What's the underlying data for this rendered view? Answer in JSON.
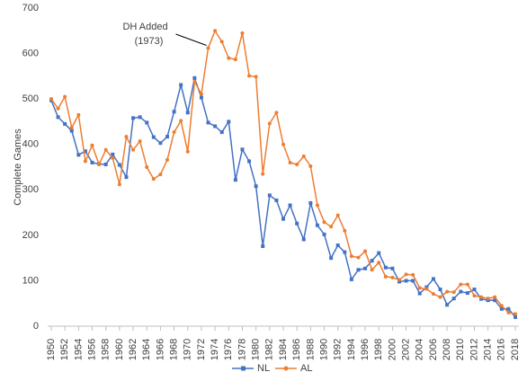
{
  "chart_data": {
    "type": "line",
    "y_label": "Complete Games",
    "x": [
      1950,
      1951,
      1952,
      1953,
      1954,
      1955,
      1956,
      1957,
      1958,
      1959,
      1960,
      1961,
      1962,
      1963,
      1964,
      1965,
      1966,
      1967,
      1968,
      1969,
      1970,
      1971,
      1972,
      1973,
      1974,
      1975,
      1976,
      1977,
      1978,
      1979,
      1980,
      1981,
      1982,
      1983,
      1984,
      1985,
      1986,
      1987,
      1988,
      1989,
      1990,
      1991,
      1992,
      1993,
      1994,
      1995,
      1996,
      1997,
      1998,
      1999,
      2000,
      2001,
      2002,
      2003,
      2004,
      2005,
      2006,
      2007,
      2008,
      2009,
      2010,
      2011,
      2012,
      2013,
      2014,
      2015,
      2016,
      2017,
      2018
    ],
    "series": [
      {
        "name": "NL",
        "color": "#4472c4",
        "marker": "square",
        "values": [
          497,
          460,
          445,
          430,
          377,
          385,
          360,
          357,
          356,
          378,
          355,
          328,
          458,
          460,
          448,
          416,
          403,
          417,
          472,
          531,
          470,
          546,
          503,
          448,
          440,
          427,
          450,
          322,
          389,
          363,
          308,
          176,
          288,
          277,
          236,
          266,
          226,
          191,
          271,
          222,
          202,
          150,
          178,
          163,
          103,
          124,
          127,
          144,
          161,
          129,
          127,
          98,
          100,
          100,
          72,
          86,
          104,
          81,
          47,
          61,
          76,
          73,
          81,
          60,
          57,
          57,
          38,
          38,
          20
        ]
      },
      {
        "name": "AL",
        "color": "#ed7d31",
        "marker": "circle",
        "values": [
          500,
          479,
          505,
          437,
          465,
          363,
          398,
          356,
          388,
          370,
          312,
          417,
          388,
          407,
          350,
          324,
          334,
          366,
          427,
          452,
          384,
          538,
          511,
          612,
          650,
          626,
          590,
          587,
          645,
          551,
          549,
          335,
          446,
          470,
          400,
          360,
          356,
          374,
          352,
          266,
          229,
          219,
          244,
          210,
          154,
          151,
          165,
          124,
          140,
          109,
          107,
          102,
          114,
          113,
          84,
          82,
          71,
          64,
          76,
          75,
          92,
          92,
          67,
          64,
          61,
          64,
          45,
          30,
          27
        ]
      }
    ],
    "annotation": {
      "text": [
        "DH Added",
        "(1973)"
      ],
      "x": 1973
    },
    "xlim": [
      1950,
      2018
    ],
    "xticks": [
      1950,
      1952,
      1954,
      1956,
      1958,
      1960,
      1962,
      1964,
      1966,
      1968,
      1970,
      1972,
      1974,
      1976,
      1978,
      1980,
      1982,
      1984,
      1986,
      1988,
      1990,
      1992,
      1994,
      1996,
      1998,
      2000,
      2002,
      2004,
      2006,
      2008,
      2010,
      2012,
      2014,
      2016,
      2018
    ],
    "ylim": [
      0,
      700
    ],
    "yticks": [
      0,
      100,
      200,
      300,
      400,
      500,
      600,
      700
    ],
    "grid": false,
    "legend": "bottom"
  }
}
